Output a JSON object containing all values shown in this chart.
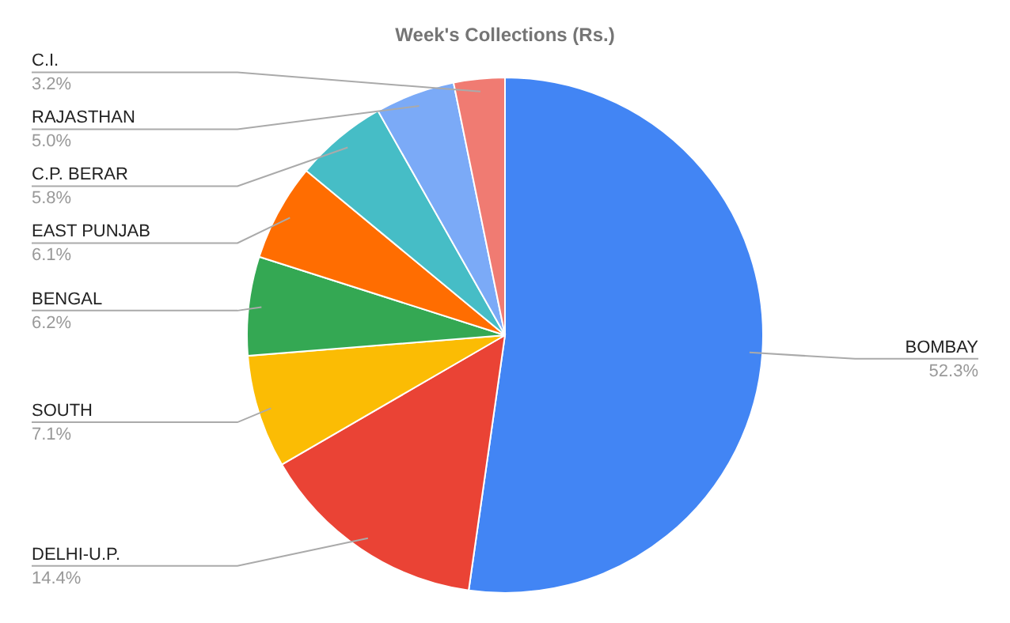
{
  "chart_data": {
    "type": "pie",
    "title": "Week's Collections (Rs.)",
    "categories": [
      "BOMBAY",
      "DELHI-U.P.",
      "SOUTH",
      "BENGAL",
      "EAST PUNJAB",
      "C.P. BERAR",
      "RAJASTHAN",
      "C.I."
    ],
    "values": [
      52.3,
      14.4,
      7.1,
      6.2,
      6.1,
      5.8,
      5.0,
      3.2
    ],
    "value_labels": [
      "52.3%",
      "14.4%",
      "7.1%",
      "6.2%",
      "6.1%",
      "5.8%",
      "5.0%",
      "3.2%"
    ],
    "colors": [
      "#4285f4",
      "#ea4335",
      "#fbbc04",
      "#34a853",
      "#ff6d01",
      "#46bdc6",
      "#7baaf7",
      "#f07b72"
    ]
  }
}
